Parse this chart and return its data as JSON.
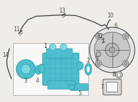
{
  "bg_color": "#f0ede8",
  "line_color": "#4a4a4a",
  "teal": "#4dbfcf",
  "teal_dark": "#2a9aaa",
  "teal_light": "#7dd8e4",
  "gray_booster": "#d0d0d0",
  "gray_booster_dark": "#aaaaaa",
  "gray_light": "#e4e4e4",
  "box_bg": "#f8f8f6",
  "label_color": "#222222",
  "figsize": [
    2.0,
    1.47
  ],
  "dpi": 100
}
